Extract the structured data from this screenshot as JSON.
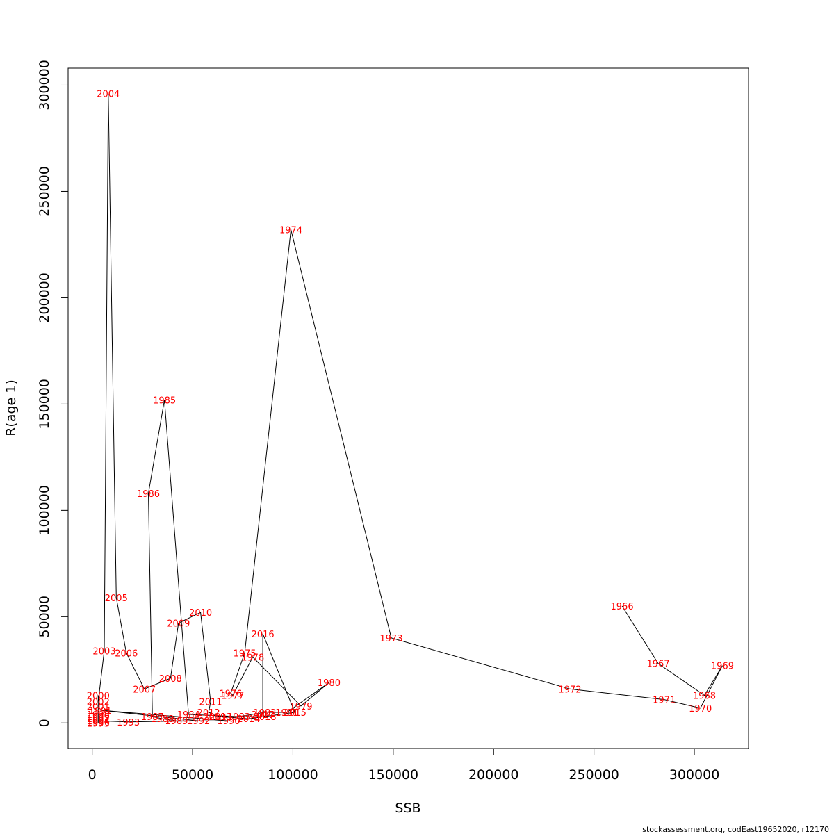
{
  "chart_data": {
    "type": "line",
    "title": "",
    "xlabel": "SSB",
    "ylabel": "R(age 1)",
    "xlim": [
      -12000,
      327000
    ],
    "ylim": [
      -12000,
      308000
    ],
    "x_ticks": [
      0,
      50000,
      100000,
      150000,
      200000,
      250000,
      300000
    ],
    "y_ticks": [
      0,
      50000,
      100000,
      150000,
      200000,
      250000,
      300000
    ],
    "grid": false,
    "line_color": "#000000",
    "label_color": "#ff0000",
    "series": [
      {
        "points": [
          {
            "year": "1966",
            "ssb": 264000,
            "r": 55000
          },
          {
            "year": "1967",
            "ssb": 282000,
            "r": 28000
          },
          {
            "year": "1968",
            "ssb": 305000,
            "r": 13000
          },
          {
            "year": "1969",
            "ssb": 314000,
            "r": 27000
          },
          {
            "year": "1970",
            "ssb": 303000,
            "r": 7000
          },
          {
            "year": "1971",
            "ssb": 285000,
            "r": 11000
          },
          {
            "year": "1972",
            "ssb": 238000,
            "r": 16000
          },
          {
            "year": "1973",
            "ssb": 149000,
            "r": 40000
          },
          {
            "year": "1974",
            "ssb": 99000,
            "r": 232000
          },
          {
            "year": "1975",
            "ssb": 76000,
            "r": 33000
          },
          {
            "year": "1976",
            "ssb": 69000,
            "r": 14000
          },
          {
            "year": "1977",
            "ssb": 70000,
            "r": 13000
          },
          {
            "year": "1978",
            "ssb": 80000,
            "r": 31000
          },
          {
            "year": "1979",
            "ssb": 104000,
            "r": 8000
          },
          {
            "year": "1980",
            "ssb": 118000,
            "r": 19000
          },
          {
            "year": "1981",
            "ssb": 97000,
            "r": 5000
          },
          {
            "year": "1982",
            "ssb": 86000,
            "r": 5000
          },
          {
            "year": "1983",
            "ssb": 73000,
            "r": 3000
          },
          {
            "year": "1984",
            "ssb": 48000,
            "r": 4000
          },
          {
            "year": "1985",
            "ssb": 36000,
            "r": 152000
          },
          {
            "year": "1986",
            "ssb": 28000,
            "r": 108000
          },
          {
            "year": "1987",
            "ssb": 30000,
            "r": 3000
          },
          {
            "year": "1988",
            "ssb": 35000,
            "r": 2000
          },
          {
            "year": "1989",
            "ssb": 42000,
            "r": 1000
          },
          {
            "year": "1990",
            "ssb": 68000,
            "r": 1000
          },
          {
            "year": "1991",
            "ssb": 4000,
            "r": 6000
          },
          {
            "year": "1992",
            "ssb": 53000,
            "r": 1000
          },
          {
            "year": "1993",
            "ssb": 18000,
            "r": 500
          },
          {
            "year": "1994",
            "ssb": 3000,
            "r": 1000
          },
          {
            "year": "1995",
            "ssb": 3000,
            "r": 0
          },
          {
            "year": "1996",
            "ssb": 3000,
            "r": 500
          },
          {
            "year": "1997",
            "ssb": 3000,
            "r": 2000
          },
          {
            "year": "1998",
            "ssb": 3000,
            "r": 4000
          },
          {
            "year": "1999",
            "ssb": 3000,
            "r": 3000
          },
          {
            "year": "2000",
            "ssb": 3000,
            "r": 13000
          },
          {
            "year": "2001",
            "ssb": 3000,
            "r": 8000
          },
          {
            "year": "2002",
            "ssb": 3000,
            "r": 10000
          },
          {
            "year": "2003",
            "ssb": 6000,
            "r": 34000
          },
          {
            "year": "2004",
            "ssb": 8000,
            "r": 296000
          },
          {
            "year": "2005",
            "ssb": 12000,
            "r": 59000
          },
          {
            "year": "2006",
            "ssb": 17000,
            "r": 33000
          },
          {
            "year": "2007",
            "ssb": 26000,
            "r": 16000
          },
          {
            "year": "2008",
            "ssb": 39000,
            "r": 21000
          },
          {
            "year": "2009",
            "ssb": 43000,
            "r": 47000
          },
          {
            "year": "2010",
            "ssb": 54000,
            "r": 52000
          },
          {
            "year": "2011",
            "ssb": 59000,
            "r": 10000
          },
          {
            "year": "2012",
            "ssb": 58000,
            "r": 5000
          },
          {
            "year": "2013",
            "ssb": 64000,
            "r": 3000
          },
          {
            "year": "2014",
            "ssb": 78000,
            "r": 2000
          },
          {
            "year": "2015",
            "ssb": 101000,
            "r": 5000
          },
          {
            "year": "2016",
            "ssb": 85000,
            "r": 42000
          },
          {
            "year": "2017",
            "ssb": 85000,
            "r": 4000
          },
          {
            "year": "2018",
            "ssb": 86000,
            "r": 3000
          },
          {
            "year": "2019",
            "ssb": 61000,
            "r": 3000
          }
        ]
      }
    ]
  },
  "footer": "stockassessment.org, codEast19652020, r12170"
}
